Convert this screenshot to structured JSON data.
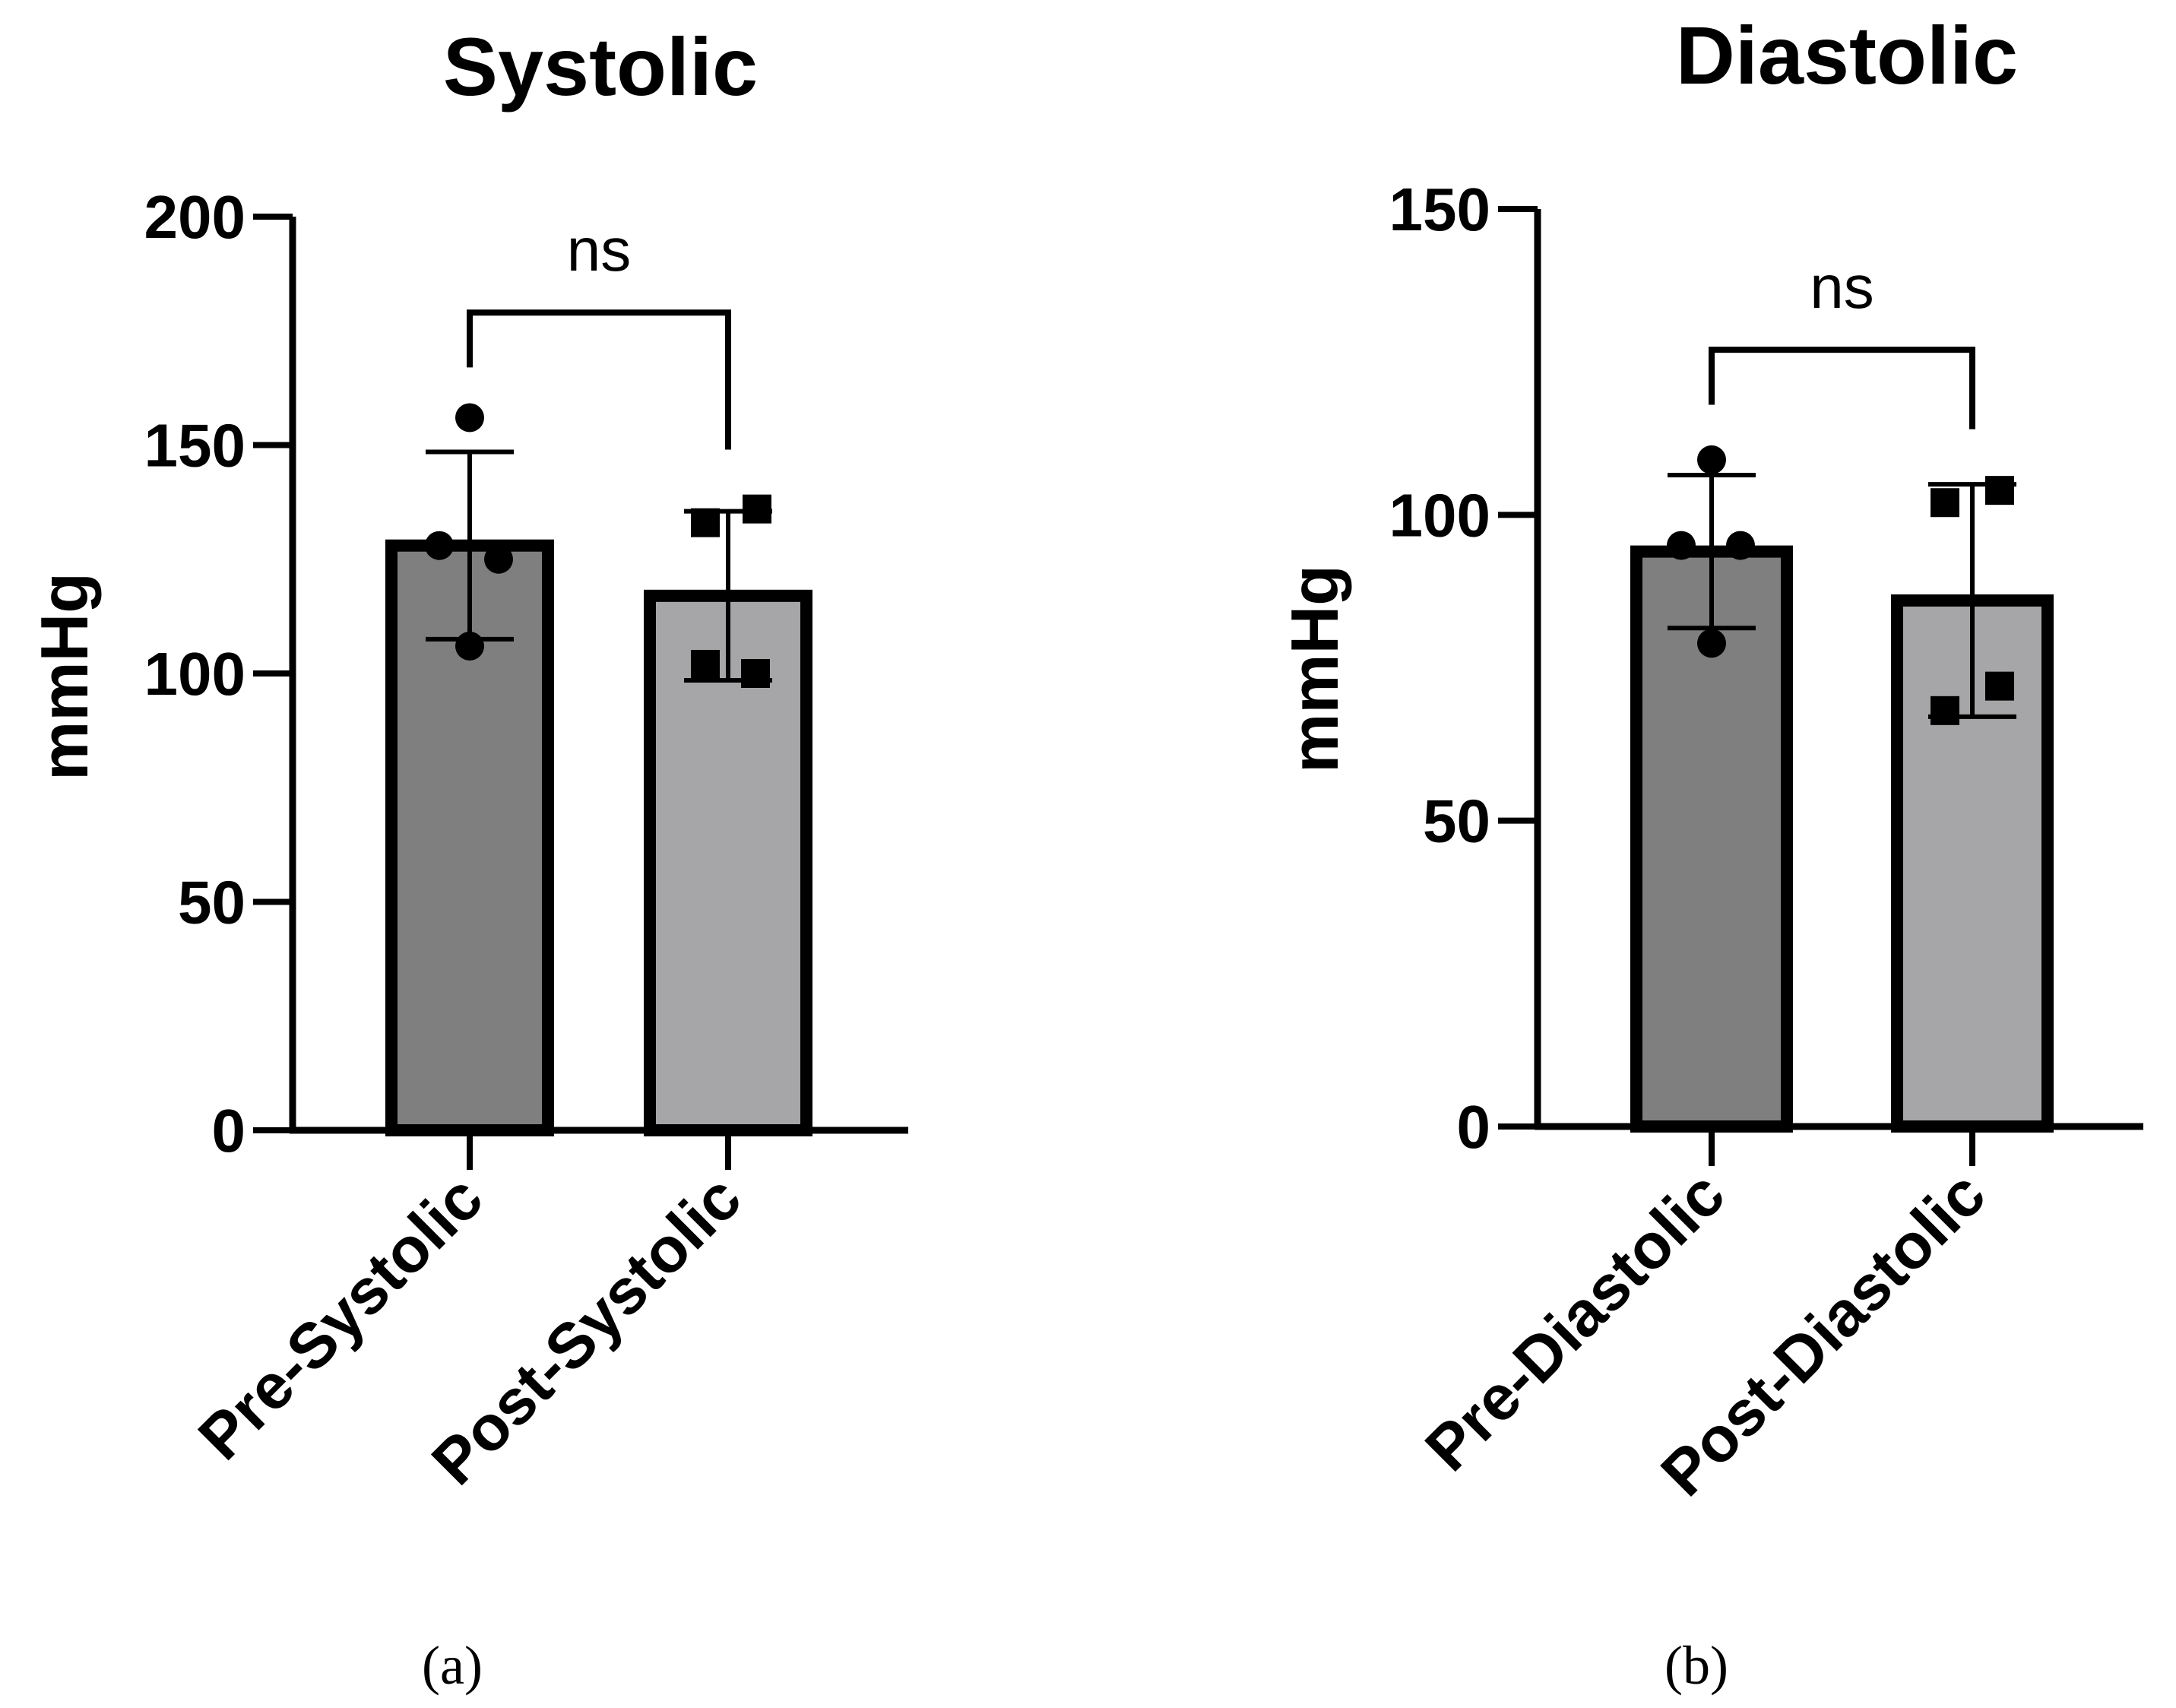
{
  "chart_data": [
    {
      "type": "bar",
      "title": "Systolic",
      "ylabel": "mmHg",
      "xlabel": "",
      "ylim": [
        0,
        200
      ],
      "yticks": [
        0,
        50,
        100,
        150,
        200
      ],
      "categories": [
        "Pre-Systolic",
        "Post-Systolic"
      ],
      "values": [
        128,
        117
      ],
      "error": [
        20.5,
        18.5
      ],
      "bar_colors": [
        "#7f7f7f",
        "#a6a6a8"
      ],
      "points": [
        {
          "marker": "circle",
          "values": [
            156,
            128,
            125,
            106
          ]
        },
        {
          "marker": "square",
          "values": [
            136,
            133,
            102,
            100
          ]
        }
      ],
      "significance": {
        "label": "ns",
        "y": 179,
        "left_tick_y": 167,
        "right_tick_y": 149
      },
      "panel_label": "(a)"
    },
    {
      "type": "bar",
      "title": "Diastolic",
      "ylabel": "mmHg",
      "xlabel": "",
      "ylim": [
        0,
        150
      ],
      "yticks": [
        0,
        50,
        100,
        150
      ],
      "categories": [
        "Pre-Diastolic",
        "Post-Diastolic"
      ],
      "values": [
        94,
        86
      ],
      "error": [
        12.5,
        19
      ],
      "bar_colors": [
        "#7f7f7f",
        "#a6a6a8"
      ],
      "points": [
        {
          "marker": "circle",
          "values": [
            109,
            95,
            95,
            79
          ]
        },
        {
          "marker": "square",
          "values": [
            104,
            102,
            72,
            68
          ]
        }
      ],
      "significance": {
        "label": "ns",
        "y": 127,
        "left_tick_y": 118,
        "right_tick_y": 114
      },
      "panel_label": "(b)"
    }
  ]
}
